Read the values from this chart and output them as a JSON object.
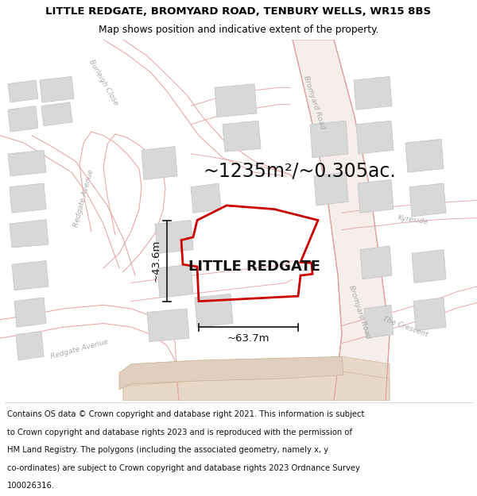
{
  "title_line1": "LITTLE REDGATE, BROMYARD ROAD, TENBURY WELLS, WR15 8BS",
  "title_line2": "Map shows position and indicative extent of the property.",
  "area_text": "~1235m²/~0.305ac.",
  "label_text": "LITTLE REDGATE",
  "dim_height": "~43.6m",
  "dim_width": "~63.7m",
  "footer_lines": [
    "Contains OS data © Crown copyright and database right 2021. This information is subject",
    "to Crown copyright and database rights 2023 and is reproduced with the permission of",
    "HM Land Registry. The polygons (including the associated geometry, namely x, y",
    "co-ordinates) are subject to Crown copyright and database rights 2023 Ordnance Survey",
    "100026316."
  ],
  "bg_color": "#f7f7f7",
  "road_fill": "#f5eeea",
  "road_line_color": "#e8aaaa",
  "road_line_color2": "#dda0a0",
  "building_color": "#d8d8d8",
  "building_stroke": "#c8c8c8",
  "plot_color": "#cc0000",
  "dim_color": "#111111",
  "label_color": "#aaaaaa",
  "title_fontsize": 9.5,
  "subtitle_fontsize": 8.8,
  "label_fontsize": 13,
  "area_fontsize": 17,
  "footer_fontsize": 7.2,
  "road_label_fontsize": 6.5
}
